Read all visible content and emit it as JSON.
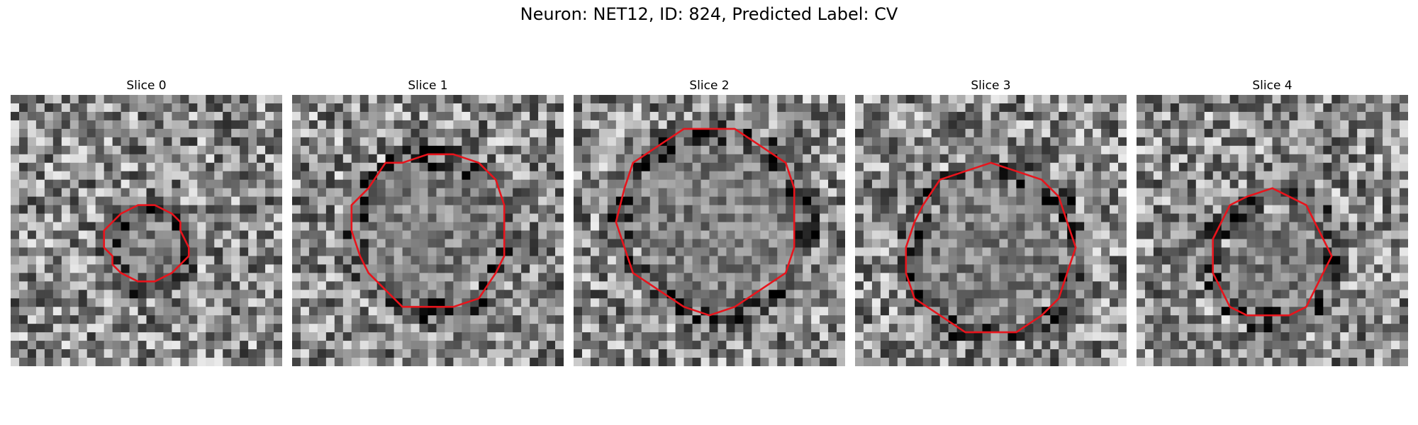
{
  "figure": {
    "title": "Neuron: NET12, ID: 824, Predicted Label: CV"
  },
  "panels": [
    {
      "title": "Slice 0",
      "seed": 11,
      "center": [
        0.5,
        0.55
      ],
      "radius": 0.15,
      "contour_color": "#e8141c"
    },
    {
      "title": "Slice 1",
      "seed": 23,
      "center": [
        0.5,
        0.5
      ],
      "radius": 0.29,
      "contour_color": "#e8141c"
    },
    {
      "title": "Slice 2",
      "seed": 37,
      "center": [
        0.5,
        0.46
      ],
      "radius": 0.34,
      "contour_color": "#e8141c"
    },
    {
      "title": "Slice 3",
      "seed": 41,
      "center": [
        0.49,
        0.57
      ],
      "radius": 0.31,
      "contour_color": "#e8141c"
    },
    {
      "title": "Slice 4",
      "seed": 53,
      "center": [
        0.49,
        0.59
      ],
      "radius": 0.23,
      "contour_color": "#e8141c"
    }
  ],
  "colors": {
    "background": "#ffffff",
    "contour": "#e8141c",
    "colormap": "grayscale"
  }
}
